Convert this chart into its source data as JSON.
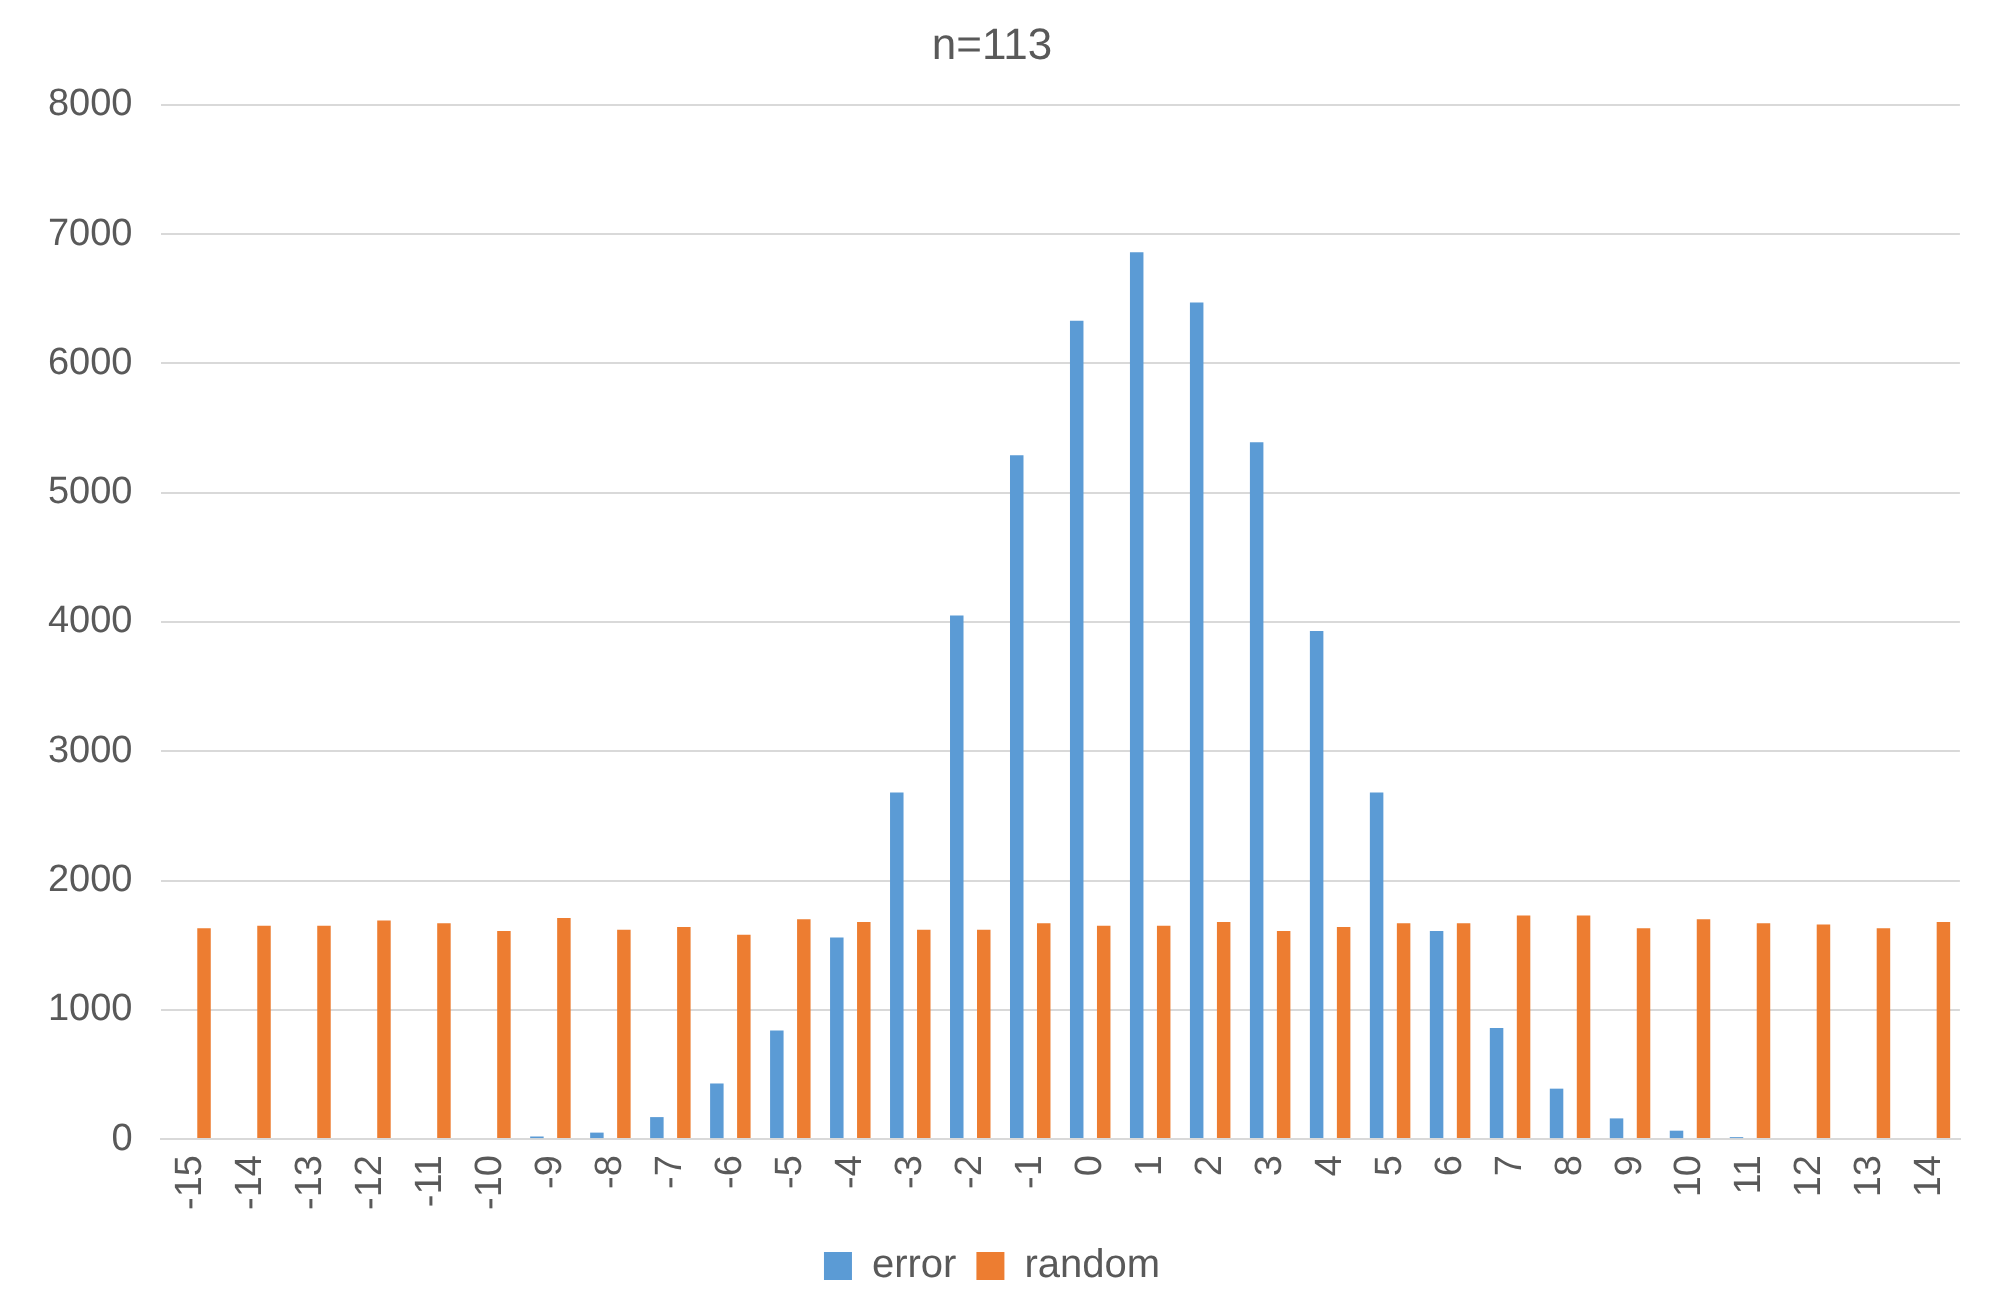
{
  "chart_data": {
    "type": "bar",
    "title": "n=113",
    "categories": [
      "-15",
      "-14",
      "-13",
      "-12",
      "-11",
      "-10",
      "-9",
      "-8",
      "-7",
      "-6",
      "-5",
      "-4",
      "-3",
      "-2",
      "-1",
      "0",
      "1",
      "2",
      "3",
      "4",
      "5",
      "6",
      "7",
      "8",
      "9",
      "10",
      "11",
      "12",
      "13",
      "14"
    ],
    "series": [
      {
        "name": "error",
        "color": "#5b9bd5",
        "values": [
          0,
          0,
          0,
          0,
          0,
          0,
          20,
          50,
          170,
          430,
          840,
          1560,
          2680,
          4050,
          5290,
          6330,
          6860,
          6470,
          5390,
          3930,
          2680,
          1610,
          860,
          390,
          160,
          65,
          15,
          0,
          0,
          0
        ]
      },
      {
        "name": "random",
        "color": "#ed7d31",
        "values": [
          1630,
          1650,
          1650,
          1690,
          1670,
          1610,
          1710,
          1620,
          1640,
          1580,
          1700,
          1680,
          1620,
          1620,
          1670,
          1650,
          1650,
          1680,
          1610,
          1640,
          1670,
          1670,
          1730,
          1730,
          1630,
          1700,
          1670,
          1660,
          1630,
          1680
        ]
      }
    ],
    "ylim": [
      0,
      8000
    ],
    "yticks": [
      0,
      1000,
      2000,
      3000,
      4000,
      5000,
      6000,
      7000,
      8000
    ],
    "grid": "y",
    "legend": "bottom"
  }
}
